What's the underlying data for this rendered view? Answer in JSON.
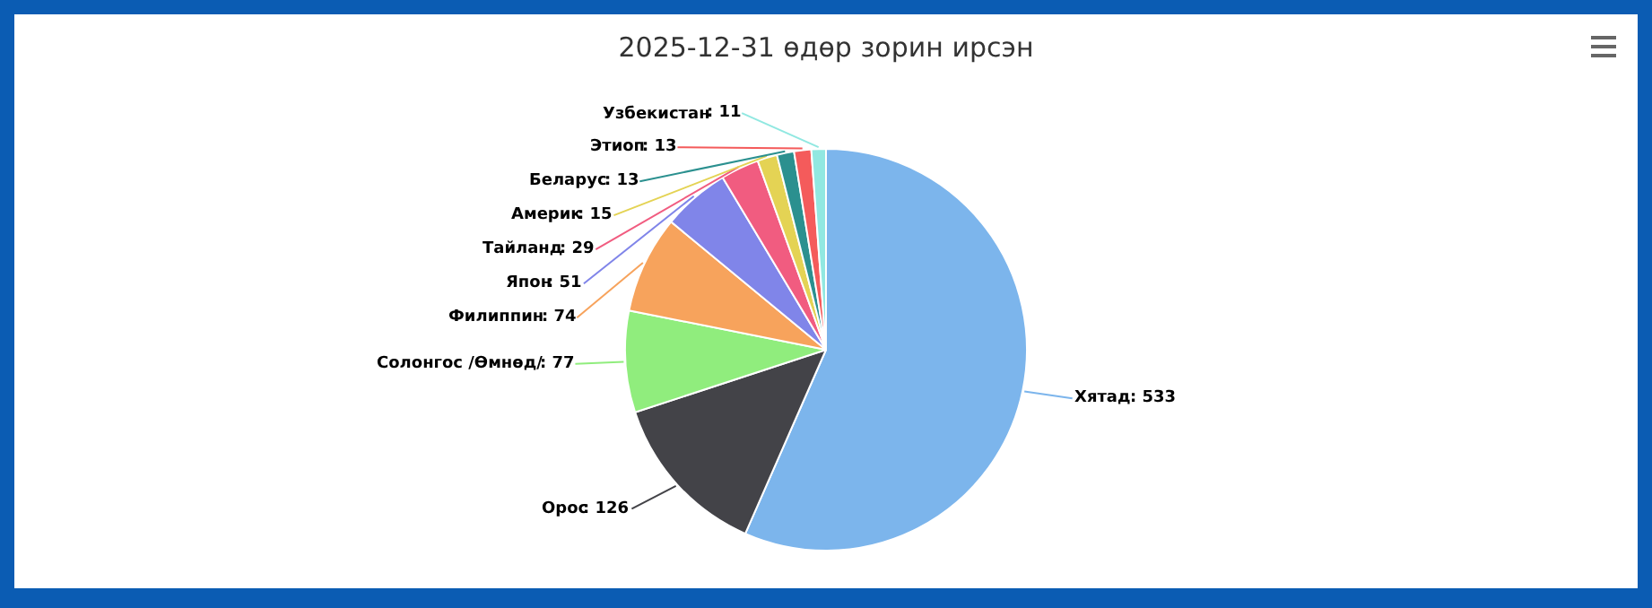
{
  "chart_data": {
    "type": "pie",
    "title": "2025-12-31 өдөр зорин ирсэн",
    "categories": [
      "Хятад",
      "Орос",
      "Солонгос /Өмнөд/",
      "Филиппин",
      "Япон",
      "Тайланд",
      "Америк",
      "Беларус",
      "Этиоп",
      "Узбекистан"
    ],
    "values": [
      533,
      126,
      77,
      74,
      51,
      29,
      15,
      13,
      13,
      11
    ],
    "colors": [
      "#7cb5ec",
      "#434348",
      "#90ed7d",
      "#f7a35c",
      "#8085e9",
      "#f15c80",
      "#e4d354",
      "#2b908f",
      "#f45b5b",
      "#91e8e1"
    ],
    "value_labels": [
      ": 533",
      ": 126",
      ": 77",
      ": 74",
      ": 51",
      ": 29",
      ": 15",
      ": 13",
      ": 13",
      ": 11"
    ],
    "legend": false
  }
}
